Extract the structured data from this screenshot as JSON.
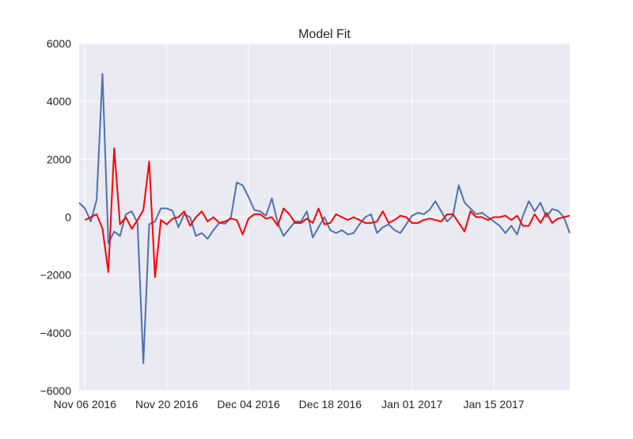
{
  "chart_data": {
    "type": "line",
    "title": "Model Fit",
    "xlabel": "",
    "ylabel": "",
    "x_start": "2016-11-05",
    "x_end": "2017-01-28",
    "xlim": [
      "2016-11-05",
      "2017-01-28"
    ],
    "ylim": [
      -6000,
      6000
    ],
    "yticks": [
      -6000,
      -4000,
      -2000,
      0,
      2000,
      4000,
      6000
    ],
    "ytick_labels": [
      "−6000",
      "−4000",
      "−2000",
      "0",
      "2000",
      "4000",
      "6000"
    ],
    "xticks": [
      "2016-11-06",
      "2016-11-20",
      "2016-12-04",
      "2016-12-18",
      "2017-01-01",
      "2017-01-15"
    ],
    "xtick_labels": [
      "Nov 06 2016",
      "Nov 20 2016",
      "Dec 04 2016",
      "Dec 18 2016",
      "Jan 01 2017",
      "Jan 15 2017"
    ],
    "grid": true,
    "background": "#EAEAF2",
    "series": [
      {
        "color": "#4C72B0",
        "x": [
          "2016-11-05",
          "2016-11-06",
          "2016-11-07",
          "2016-11-08",
          "2016-11-09",
          "2016-11-10",
          "2016-11-11",
          "2016-11-12",
          "2016-11-13",
          "2016-11-14",
          "2016-11-15",
          "2016-11-16",
          "2016-11-17",
          "2016-11-18",
          "2016-11-19",
          "2016-11-20",
          "2016-11-21",
          "2016-11-22",
          "2016-11-23",
          "2016-11-24",
          "2016-11-25",
          "2016-11-26",
          "2016-11-27",
          "2016-11-28",
          "2016-11-29",
          "2016-11-30",
          "2016-12-01",
          "2016-12-02",
          "2016-12-03",
          "2016-12-04",
          "2016-12-05",
          "2016-12-06",
          "2016-12-07",
          "2016-12-08",
          "2016-12-09",
          "2016-12-10",
          "2016-12-11",
          "2016-12-12",
          "2016-12-13",
          "2016-12-14",
          "2016-12-15",
          "2016-12-16",
          "2016-12-17",
          "2016-12-18",
          "2016-12-19",
          "2016-12-20",
          "2016-12-21",
          "2016-12-22",
          "2016-12-23",
          "2016-12-24",
          "2016-12-25",
          "2016-12-26",
          "2016-12-27",
          "2016-12-28",
          "2016-12-29",
          "2016-12-30",
          "2016-12-31",
          "2017-01-01",
          "2017-01-02",
          "2017-01-03",
          "2017-01-04",
          "2017-01-05",
          "2017-01-06",
          "2017-01-07",
          "2017-01-08",
          "2017-01-09",
          "2017-01-10",
          "2017-01-11",
          "2017-01-12",
          "2017-01-13",
          "2017-01-14",
          "2017-01-15",
          "2017-01-16",
          "2017-01-17",
          "2017-01-18",
          "2017-01-19",
          "2017-01-20",
          "2017-01-21",
          "2017-01-22",
          "2017-01-23",
          "2017-01-24",
          "2017-01-25",
          "2017-01-26",
          "2017-01-27",
          "2017-01-28"
        ],
        "values": [
          500,
          300,
          -150,
          600,
          4950,
          -900,
          -500,
          -650,
          100,
          200,
          -200,
          -5050,
          -250,
          -150,
          300,
          300,
          220,
          -350,
          100,
          0,
          -650,
          -550,
          -750,
          -450,
          -200,
          -230,
          0,
          1200,
          1100,
          700,
          250,
          200,
          50,
          650,
          -200,
          -650,
          -400,
          -150,
          -150,
          200,
          -700,
          -350,
          0,
          -450,
          -550,
          -450,
          -600,
          -550,
          -250,
          0,
          100,
          -550,
          -350,
          -250,
          -450,
          -550,
          -250,
          50,
          150,
          100,
          250,
          550,
          200,
          -150,
          50,
          1100,
          500,
          300,
          100,
          150,
          0,
          -150,
          -300,
          -550,
          -300,
          -600,
          50,
          550,
          200,
          500,
          0,
          280,
          220,
          0,
          -550
        ]
      },
      {
        "color": "#FF0000",
        "x": [
          "2016-11-06",
          "2016-11-07",
          "2016-11-08",
          "2016-11-09",
          "2016-11-10",
          "2016-11-11",
          "2016-11-12",
          "2016-11-13",
          "2016-11-14",
          "2016-11-15",
          "2016-11-16",
          "2016-11-17",
          "2016-11-18",
          "2016-11-19",
          "2016-11-20",
          "2016-11-21",
          "2016-11-22",
          "2016-11-23",
          "2016-11-24",
          "2016-11-25",
          "2016-11-26",
          "2016-11-27",
          "2016-11-28",
          "2016-11-29",
          "2016-11-30",
          "2016-12-01",
          "2016-12-02",
          "2016-12-03",
          "2016-12-04",
          "2016-12-05",
          "2016-12-06",
          "2016-12-07",
          "2016-12-08",
          "2016-12-09",
          "2016-12-10",
          "2016-12-11",
          "2016-12-12",
          "2016-12-13",
          "2016-12-14",
          "2016-12-15",
          "2016-12-16",
          "2016-12-17",
          "2016-12-18",
          "2016-12-19",
          "2016-12-20",
          "2016-12-21",
          "2016-12-22",
          "2016-12-23",
          "2016-12-24",
          "2016-12-25",
          "2016-12-26",
          "2016-12-27",
          "2016-12-28",
          "2016-12-29",
          "2016-12-30",
          "2016-12-31",
          "2017-01-01",
          "2017-01-02",
          "2017-01-03",
          "2017-01-04",
          "2017-01-05",
          "2017-01-06",
          "2017-01-07",
          "2017-01-08",
          "2017-01-09",
          "2017-01-10",
          "2017-01-11",
          "2017-01-12",
          "2017-01-13",
          "2017-01-14",
          "2017-01-15",
          "2017-01-16",
          "2017-01-17",
          "2017-01-18",
          "2017-01-19",
          "2017-01-20",
          "2017-01-21",
          "2017-01-22",
          "2017-01-23",
          "2017-01-24",
          "2017-01-25",
          "2017-01-26",
          "2017-01-27",
          "2017-01-28"
        ],
        "values": [
          -100,
          0,
          100,
          -400,
          -1900,
          2380,
          -250,
          0,
          -400,
          -100,
          250,
          1920,
          -2080,
          -100,
          -250,
          -50,
          0,
          200,
          -300,
          0,
          200,
          -150,
          0,
          -200,
          -150,
          -50,
          -100,
          -600,
          -50,
          100,
          100,
          -50,
          0,
          -300,
          300,
          100,
          -200,
          -200,
          -50,
          -200,
          300,
          -250,
          -200,
          100,
          0,
          -100,
          0,
          -100,
          -200,
          -200,
          -150,
          200,
          -200,
          -100,
          50,
          0,
          -200,
          -200,
          -100,
          -50,
          -100,
          -150,
          100,
          100,
          -200,
          -500,
          200,
          0,
          0,
          -100,
          0,
          0,
          50,
          -100,
          50,
          -300,
          -300,
          100,
          -200,
          150,
          -200,
          -50,
          0,
          50
        ]
      }
    ]
  }
}
